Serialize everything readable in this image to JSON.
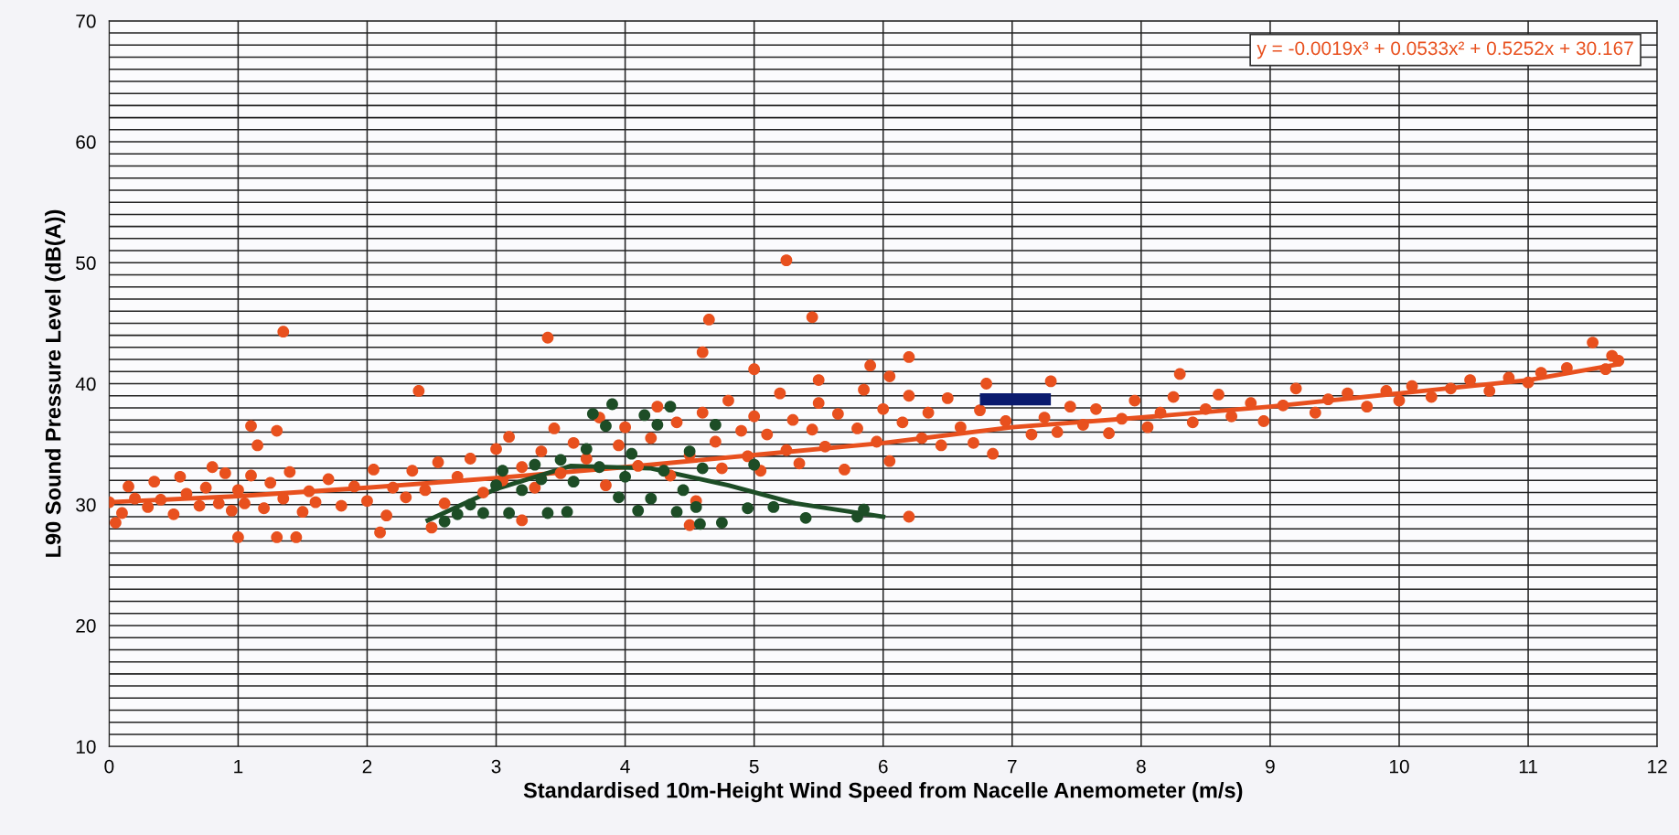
{
  "chart_data": {
    "type": "scatter",
    "xlabel": "Standardised 10m-Height Wind Speed from Nacelle Anemometer (m/s)",
    "ylabel": "L90 Sound Pressure Level (dB(A))",
    "annotations": [
      "y = -0.0019x³ + 0.0533x² + 0.5252x + 30.167"
    ],
    "xlim": [
      0,
      12
    ],
    "ylim": [
      10,
      70
    ],
    "xticks": [
      0,
      1,
      2,
      3,
      4,
      5,
      6,
      7,
      8,
      9,
      10,
      11,
      12
    ],
    "yticks": [
      10,
      {
        "value": 11,
        "label": null
      },
      {
        "value": 12,
        "label": null
      },
      {
        "value": 13,
        "label": null
      },
      {
        "value": 14,
        "label": null
      },
      {
        "value": 15,
        "label": null
      },
      {
        "value": 16,
        "label": null
      },
      {
        "value": 17,
        "label": null
      },
      {
        "value": 18,
        "label": null
      },
      {
        "value": 19,
        "label": null
      },
      20,
      {
        "value": 21,
        "label": null
      },
      {
        "value": 22,
        "label": null
      },
      {
        "value": 23,
        "label": null
      },
      {
        "value": 24,
        "label": null
      },
      {
        "value": 25,
        "label": null
      },
      {
        "value": 26,
        "label": null
      },
      {
        "value": 27,
        "label": null
      },
      {
        "value": 28,
        "label": null
      },
      {
        "value": 29,
        "label": null
      },
      30,
      {
        "value": 31,
        "label": null
      },
      {
        "value": 32,
        "label": null
      },
      {
        "value": 33,
        "label": null
      },
      {
        "value": 34,
        "label": null
      },
      {
        "value": 35,
        "label": null
      },
      {
        "value": 36,
        "label": null
      },
      {
        "value": 37,
        "label": null
      },
      {
        "value": 38,
        "label": null
      },
      {
        "value": 39,
        "label": null
      },
      40,
      {
        "value": 41,
        "label": null
      },
      {
        "value": 42,
        "label": null
      },
      {
        "value": 43,
        "label": null
      },
      {
        "value": 44,
        "label": null
      },
      {
        "value": 45,
        "label": null
      },
      {
        "value": 46,
        "label": null
      },
      {
        "value": 47,
        "label": null
      },
      {
        "value": 48,
        "label": null
      },
      {
        "value": 49,
        "label": null
      },
      50,
      {
        "value": 51,
        "label": null
      },
      {
        "value": 52,
        "label": null
      },
      {
        "value": 53,
        "label": null
      },
      {
        "value": 54,
        "label": null
      },
      {
        "value": 55,
        "label": null
      },
      {
        "value": 56,
        "label": null
      },
      {
        "value": 57,
        "label": null
      },
      {
        "value": 58,
        "label": null
      },
      {
        "value": 59,
        "label": null
      },
      60,
      {
        "value": 61,
        "label": null
      },
      {
        "value": 62,
        "label": null
      },
      {
        "value": 63,
        "label": null
      },
      {
        "value": 64,
        "label": null
      },
      {
        "value": 65,
        "label": null
      },
      {
        "value": 66,
        "label": null
      },
      {
        "value": 67,
        "label": null
      },
      {
        "value": 68,
        "label": null
      },
      {
        "value": 69,
        "label": null
      },
      70
    ],
    "grid": true,
    "series": [
      {
        "marker": "circle",
        "color": "#e8501e",
        "x": [
          0,
          0.05,
          0.1,
          0.15,
          0.2,
          0.3,
          0.35,
          0.4,
          0.5,
          0.55,
          0.6,
          0.7,
          0.75,
          0.8,
          0.85,
          0.9,
          0.95,
          1.0,
          1.05,
          1.1,
          1.2,
          1.25,
          1.35,
          1.4,
          1.5,
          1.55,
          1.6,
          1.7,
          1.8,
          1.9,
          2.0,
          2.05,
          2.15,
          2.2,
          2.3,
          2.35,
          2.45,
          2.55,
          2.6,
          2.7,
          2.8,
          2.9,
          3.0,
          3.05,
          3.1,
          3.2,
          3.3,
          3.35,
          3.45,
          3.5,
          3.6,
          3.7,
          3.8,
          3.85,
          3.95,
          4.0,
          4.1,
          4.2,
          4.25,
          4.35,
          4.4,
          4.5,
          4.55,
          4.6,
          4.7,
          4.75,
          4.8,
          4.9,
          4.95,
          5.0,
          5.05,
          5.1,
          5.2,
          5.25,
          5.3,
          5.35,
          5.45,
          5.5,
          5.55,
          5.65,
          5.7,
          5.8,
          5.85,
          5.95,
          6.0,
          6.05,
          6.15,
          6.2,
          6.3,
          6.35,
          6.45,
          6.5,
          6.6,
          6.7,
          6.75,
          6.85,
          6.95,
          7.05,
          7.15,
          7.25,
          7.35,
          7.45,
          7.55,
          7.65,
          7.75,
          7.85,
          7.95,
          8.05,
          8.15,
          8.25,
          8.4,
          8.5,
          8.6,
          8.7,
          8.85,
          8.95,
          9.1,
          9.2,
          9.35,
          9.45,
          9.6,
          9.75,
          9.9,
          10.0,
          10.1,
          10.25,
          10.4,
          10.55,
          10.7,
          10.85,
          11.0,
          11.1,
          11.3,
          11.6,
          11.65,
          11.7,
          1.35,
          3.4,
          4.65,
          5.25,
          5.45,
          4.6,
          6.2,
          2.4,
          11.5,
          6.8,
          7.3,
          8.3,
          1.1,
          1.3,
          1.15,
          1.0,
          1.3,
          1.45,
          2.1,
          2.5,
          6.2,
          4.5,
          3.2,
          5.5,
          6.05,
          5.0,
          5.9
        ],
        "values": [
          30.2,
          28.5,
          29.3,
          31.5,
          30.5,
          29.8,
          31.9,
          30.4,
          29.2,
          32.3,
          30.9,
          29.9,
          31.4,
          33.1,
          30.1,
          32.6,
          29.5,
          31.2,
          30.1,
          32.4,
          29.7,
          31.8,
          30.5,
          32.7,
          29.4,
          31.1,
          30.2,
          32.1,
          29.9,
          31.5,
          30.3,
          32.9,
          29.1,
          31.4,
          30.6,
          32.8,
          31.2,
          33.5,
          30.1,
          32.3,
          33.8,
          31.0,
          34.6,
          32.0,
          35.6,
          33.1,
          31.4,
          34.4,
          36.3,
          32.6,
          35.1,
          33.8,
          37.2,
          31.6,
          34.9,
          36.4,
          33.2,
          35.5,
          38.1,
          32.4,
          36.8,
          34.1,
          30.3,
          37.6,
          35.2,
          33.0,
          38.6,
          36.1,
          34.0,
          37.3,
          32.8,
          35.8,
          39.2,
          34.5,
          37.0,
          33.4,
          36.2,
          38.4,
          34.8,
          37.5,
          32.9,
          36.3,
          39.5,
          35.2,
          37.9,
          33.6,
          36.8,
          39.0,
          35.5,
          37.6,
          34.9,
          38.8,
          36.4,
          35.1,
          37.8,
          34.2,
          36.9,
          null,
          35.8,
          37.2,
          36.0,
          38.1,
          36.6,
          37.9,
          35.9,
          37.1,
          38.6,
          36.4,
          37.6,
          38.9,
          36.8,
          37.9,
          39.1,
          37.3,
          38.4,
          36.9,
          38.2,
          39.6,
          37.6,
          38.7,
          39.2,
          38.1,
          39.4,
          38.6,
          39.8,
          38.9,
          39.6,
          40.3,
          39.4,
          40.5,
          40.1,
          40.9,
          41.3,
          41.2,
          42.3,
          41.9,
          44.3,
          43.8,
          45.3,
          50.2,
          45.5,
          42.6,
          42.2,
          39.4,
          43.4,
          40.0,
          40.2,
          40.8,
          36.5,
          36.1,
          34.9,
          27.3,
          27.3,
          27.3,
          27.7,
          28.1,
          29.0,
          28.3,
          28.7,
          40.3,
          40.6,
          41.2,
          41.5
        ]
      },
      {
        "marker": "circle",
        "color": "#1d4d26",
        "x": [
          2.6,
          2.7,
          2.8,
          2.9,
          3.0,
          3.05,
          3.1,
          3.2,
          3.3,
          3.35,
          3.4,
          3.5,
          3.55,
          3.6,
          3.7,
          3.75,
          3.8,
          3.85,
          3.9,
          3.95,
          4.0,
          4.05,
          4.1,
          4.15,
          4.2,
          4.25,
          4.3,
          4.35,
          4.4,
          4.45,
          4.5,
          4.55,
          4.6,
          4.7,
          4.75,
          4.95,
          5.0,
          5.15,
          5.4,
          5.8,
          5.85,
          4.58
        ],
        "values": [
          28.6,
          29.2,
          30.0,
          29.3,
          31.6,
          32.8,
          29.3,
          31.2,
          33.3,
          32.1,
          29.3,
          33.7,
          29.4,
          31.9,
          34.6,
          37.5,
          33.1,
          36.5,
          38.3,
          30.6,
          32.3,
          34.2,
          29.5,
          37.4,
          30.5,
          36.6,
          32.8,
          38.1,
          29.4,
          31.2,
          34.4,
          29.8,
          33.0,
          36.6,
          28.5,
          29.7,
          33.3,
          29.8,
          28.9,
          29.0,
          29.6,
          28.4
        ]
      },
      {
        "type": "line",
        "marker": "none",
        "line_style": "solid",
        "color": "#e8501e",
        "x": [
          0,
          1,
          2,
          3,
          4,
          5,
          6,
          7,
          8,
          9,
          10,
          11,
          11.7
        ],
        "values": [
          30.2,
          30.7,
          31.4,
          32.2,
          33.1,
          34.1,
          35.1,
          36.4,
          37.2,
          38.1,
          39.2,
          40.3,
          41.6
        ]
      },
      {
        "type": "line",
        "marker": "none",
        "line_style": "solid",
        "color": "#1d4d26",
        "x": [
          2.47,
          3.0,
          3.58,
          4.2,
          4.8,
          5.32,
          6.0
        ],
        "values": [
          28.7,
          31.3,
          33.2,
          33.0,
          31.6,
          30.1,
          29.0
        ]
      }
    ]
  }
}
